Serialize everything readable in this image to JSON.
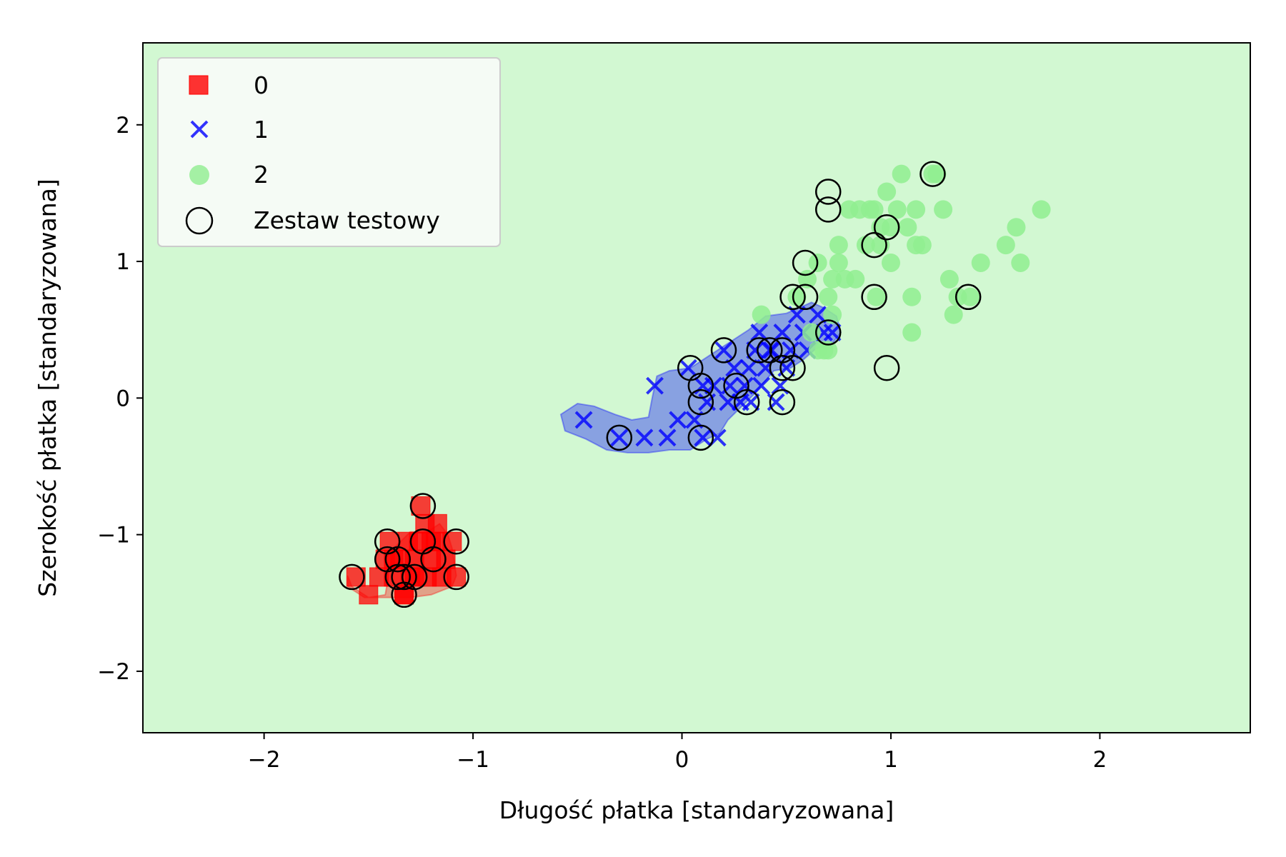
{
  "chart_data": {
    "type": "scatter",
    "title": "",
    "xlabel": "Długość płatka [standaryzowana]",
    "ylabel": "Szerokość płatka [standaryzowana]",
    "xlim": [
      -2.58,
      2.72
    ],
    "ylim": [
      -2.45,
      2.6
    ],
    "xticks": [
      -2,
      -1,
      0,
      1,
      2
    ],
    "yticks": [
      -2,
      -1,
      0,
      1,
      2
    ],
    "xtick_labels": [
      "−2",
      "−1",
      "0",
      "1",
      "2"
    ],
    "ytick_labels": [
      "−2",
      "−1",
      "0",
      "1",
      "2"
    ],
    "grid": false,
    "legend_position": "top-left",
    "background_region_color": "#d2f8d2",
    "series": [
      {
        "name": "0",
        "marker": "square",
        "color": "#ff0000",
        "x": [
          -1.56,
          -1.5,
          -1.45,
          -1.42,
          -1.4,
          -1.38,
          -1.35,
          -1.33,
          -1.31,
          -1.3,
          -1.28,
          -1.26,
          -1.25,
          -1.23,
          -1.22,
          -1.2,
          -1.18,
          -1.17,
          -1.15,
          -1.13,
          -1.1,
          -1.08,
          -1.33,
          -1.28,
          -1.2,
          -1.38
        ],
        "y": [
          -1.31,
          -1.44,
          -1.31,
          -1.18,
          -1.05,
          -1.31,
          -1.18,
          -1.44,
          -1.05,
          -1.31,
          -1.18,
          -1.05,
          -0.79,
          -0.92,
          -1.31,
          -1.18,
          -1.05,
          -0.92,
          -1.31,
          -1.18,
          -1.05,
          -1.31,
          -1.44,
          -1.31,
          -1.05,
          -1.18
        ]
      },
      {
        "name": "1",
        "marker": "x",
        "color": "#0000ff",
        "x": [
          -0.47,
          -0.3,
          -0.18,
          -0.13,
          -0.07,
          -0.02,
          0.03,
          0.06,
          0.1,
          0.12,
          0.15,
          0.17,
          0.2,
          0.23,
          0.25,
          0.28,
          0.3,
          0.32,
          0.35,
          0.37,
          0.38,
          0.4,
          0.42,
          0.45,
          0.47,
          0.48,
          0.5,
          0.52,
          0.55,
          0.58,
          0.6,
          0.65,
          0.68,
          0.72,
          0.1,
          0.22,
          0.33,
          0.43
        ],
        "y": [
          -0.16,
          -0.29,
          -0.29,
          0.09,
          -0.29,
          -0.16,
          0.22,
          -0.16,
          0.09,
          -0.03,
          0.09,
          -0.29,
          0.35,
          0.09,
          0.22,
          -0.03,
          0.09,
          0.22,
          0.35,
          0.48,
          0.09,
          0.22,
          0.35,
          -0.03,
          0.09,
          0.48,
          0.22,
          0.35,
          0.61,
          0.48,
          0.35,
          0.61,
          0.48,
          0.48,
          -0.29,
          -0.03,
          -0.03,
          0.35
        ]
      },
      {
        "name": "2",
        "marker": "circle",
        "color": "#90ee90",
        "x": [
          0.38,
          0.55,
          0.6,
          0.65,
          0.7,
          0.72,
          0.75,
          0.8,
          0.83,
          0.88,
          0.9,
          0.93,
          0.95,
          0.98,
          1.0,
          1.03,
          1.05,
          1.08,
          1.1,
          1.12,
          1.15,
          1.2,
          1.22,
          1.25,
          1.28,
          1.32,
          1.38,
          1.43,
          1.55,
          1.6,
          1.62,
          1.72,
          0.65,
          0.7,
          0.75,
          0.85,
          0.95,
          1.0,
          1.1,
          0.62,
          0.68,
          0.72,
          0.78,
          0.92,
          1.12,
          1.3
        ],
        "y": [
          0.61,
          0.74,
          0.87,
          0.99,
          0.74,
          0.87,
          0.99,
          1.38,
          0.87,
          1.12,
          1.38,
          0.74,
          1.25,
          1.51,
          0.99,
          1.38,
          1.64,
          1.25,
          0.74,
          1.38,
          1.12,
          1.64,
          1.64,
          1.38,
          0.87,
          0.74,
          0.74,
          0.99,
          1.12,
          1.25,
          0.99,
          1.38,
          0.35,
          0.35,
          1.12,
          1.38,
          1.12,
          1.25,
          0.48,
          0.48,
          0.35,
          0.61,
          0.87,
          1.38,
          1.12,
          0.61
        ]
      },
      {
        "name": "Zestaw testowy",
        "marker": "open-circle",
        "color": "#000000",
        "x": [
          -1.58,
          -1.41,
          -1.41,
          -1.36,
          -1.36,
          -1.33,
          -1.33,
          -1.28,
          -1.24,
          -1.24,
          -1.19,
          -1.08,
          -1.08,
          -0.3,
          0.04,
          0.09,
          0.09,
          0.09,
          0.2,
          0.26,
          0.31,
          0.37,
          0.42,
          0.48,
          0.48,
          0.48,
          0.53,
          0.53,
          0.59,
          0.59,
          0.7,
          0.7,
          0.7,
          0.92,
          0.92,
          0.98,
          0.98,
          1.2,
          1.37
        ],
        "y": [
          -1.31,
          -1.05,
          -1.18,
          -1.31,
          -1.18,
          -1.31,
          -1.44,
          -1.31,
          -0.79,
          -1.05,
          -1.18,
          -1.05,
          -1.31,
          -0.29,
          0.22,
          -0.29,
          -0.03,
          0.09,
          0.35,
          0.09,
          -0.03,
          0.35,
          0.35,
          -0.03,
          0.22,
          0.35,
          0.22,
          0.74,
          0.74,
          0.99,
          0.48,
          1.38,
          1.51,
          0.74,
          1.12,
          0.22,
          1.25,
          1.64,
          0.74
        ]
      }
    ],
    "decision_regions": [
      {
        "class": "0",
        "color": "#ff0000",
        "polygon_x": [
          -1.6,
          -1.58,
          -1.5,
          -1.42,
          -1.38,
          -1.3,
          -1.24,
          -1.2,
          -1.16,
          -1.12,
          -1.1,
          -1.08,
          -1.1,
          -1.2,
          -1.3,
          -1.42,
          -1.52,
          -1.6
        ],
        "polygon_y": [
          -1.3,
          -1.38,
          -1.46,
          -1.44,
          -1.1,
          -0.98,
          -0.98,
          -0.96,
          -0.92,
          -1.0,
          -1.1,
          -1.3,
          -1.38,
          -1.44,
          -1.46,
          -1.46,
          -1.46,
          -1.38
        ]
      },
      {
        "class": "1",
        "color": "#0000ff",
        "polygon_x": [
          -0.58,
          -0.5,
          -0.42,
          -0.32,
          -0.24,
          -0.16,
          -0.14,
          -0.12,
          -0.06,
          0.04,
          0.12,
          0.22,
          0.32,
          0.4,
          0.5,
          0.56,
          0.62,
          0.68,
          0.74,
          0.76,
          0.72,
          0.64,
          0.58,
          0.52,
          0.44,
          0.34,
          0.26,
          0.22,
          0.18,
          0.12,
          0.04,
          -0.06,
          -0.16,
          -0.26,
          -0.36,
          -0.46,
          -0.56
        ],
        "polygon_y": [
          -0.12,
          -0.04,
          -0.06,
          -0.12,
          -0.16,
          -0.14,
          0.02,
          0.16,
          0.2,
          0.22,
          0.3,
          0.4,
          0.5,
          0.6,
          0.62,
          0.66,
          0.7,
          0.66,
          0.6,
          0.48,
          0.4,
          0.36,
          0.28,
          0.22,
          0.2,
          0.02,
          -0.1,
          -0.16,
          -0.26,
          -0.3,
          -0.38,
          -0.38,
          -0.4,
          -0.4,
          -0.38,
          -0.3,
          -0.24
        ]
      }
    ]
  }
}
